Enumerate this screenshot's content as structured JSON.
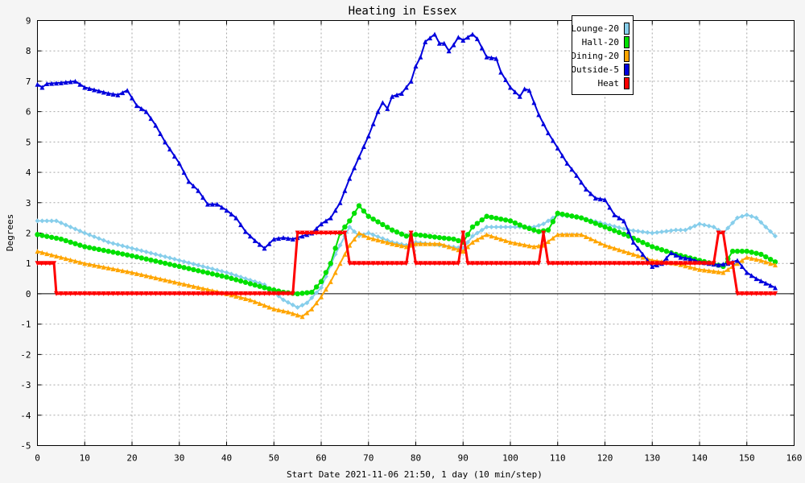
{
  "chart_data": {
    "type": "line",
    "title": "Heating in Essex",
    "xlabel": "Start Date 2021-11-06 21:50, 1 day (10 min/step)",
    "ylabel": "Degrees",
    "xlim": [
      0,
      160
    ],
    "ylim": [
      -5,
      9
    ],
    "x_ticks": [
      0,
      10,
      20,
      30,
      40,
      50,
      60,
      70,
      80,
      90,
      100,
      110,
      120,
      130,
      140,
      150,
      160
    ],
    "y_ticks": [
      -5,
      -4,
      -3,
      -2,
      -1,
      0,
      1,
      2,
      3,
      4,
      5,
      6,
      7,
      8,
      9
    ],
    "grid": true,
    "legend_position": "top-right",
    "series": [
      {
        "name": "Lounge-20",
        "color": "#87ceeb",
        "marker": "diamond",
        "points": [
          [
            0,
            2.4
          ],
          [
            4,
            2.4
          ],
          [
            10,
            2.0
          ],
          [
            15,
            1.7
          ],
          [
            20,
            1.5
          ],
          [
            30,
            1.1
          ],
          [
            40,
            0.7
          ],
          [
            48,
            0.3
          ],
          [
            52,
            -0.2
          ],
          [
            55,
            -0.45
          ],
          [
            57,
            -0.3
          ],
          [
            60,
            0.2
          ],
          [
            63,
            1.3
          ],
          [
            66,
            2.2
          ],
          [
            68,
            1.9
          ],
          [
            70,
            2.0
          ],
          [
            75,
            1.7
          ],
          [
            78,
            1.6
          ],
          [
            80,
            1.7
          ],
          [
            85,
            1.6
          ],
          [
            90,
            1.5
          ],
          [
            92,
            1.9
          ],
          [
            95,
            2.2
          ],
          [
            100,
            2.2
          ],
          [
            105,
            2.2
          ],
          [
            107,
            2.3
          ],
          [
            110,
            2.6
          ],
          [
            115,
            2.5
          ],
          [
            120,
            2.3
          ],
          [
            125,
            2.1
          ],
          [
            130,
            2.0
          ],
          [
            135,
            2.1
          ],
          [
            137,
            2.1
          ],
          [
            140,
            2.3
          ],
          [
            143,
            2.2
          ],
          [
            145,
            2.0
          ],
          [
            148,
            2.5
          ],
          [
            150,
            2.6
          ],
          [
            152,
            2.5
          ],
          [
            154,
            2.2
          ],
          [
            156,
            1.9
          ]
        ]
      },
      {
        "name": "Hall-20",
        "color": "#00e000",
        "marker": "circle",
        "points": [
          [
            0,
            1.95
          ],
          [
            5,
            1.8
          ],
          [
            10,
            1.55
          ],
          [
            20,
            1.25
          ],
          [
            30,
            0.9
          ],
          [
            40,
            0.55
          ],
          [
            48,
            0.2
          ],
          [
            52,
            0.05
          ],
          [
            55,
            0.0
          ],
          [
            58,
            0.05
          ],
          [
            60,
            0.4
          ],
          [
            62,
            1.0
          ],
          [
            64,
            2.0
          ],
          [
            66,
            2.4
          ],
          [
            68,
            2.9
          ],
          [
            70,
            2.55
          ],
          [
            75,
            2.1
          ],
          [
            78,
            1.9
          ],
          [
            80,
            1.95
          ],
          [
            85,
            1.85
          ],
          [
            88,
            1.8
          ],
          [
            90,
            1.7
          ],
          [
            92,
            2.2
          ],
          [
            95,
            2.55
          ],
          [
            100,
            2.4
          ],
          [
            103,
            2.2
          ],
          [
            106,
            2.05
          ],
          [
            108,
            2.1
          ],
          [
            110,
            2.65
          ],
          [
            115,
            2.5
          ],
          [
            120,
            2.2
          ],
          [
            125,
            1.9
          ],
          [
            130,
            1.55
          ],
          [
            135,
            1.3
          ],
          [
            140,
            1.1
          ],
          [
            145,
            0.9
          ],
          [
            147,
            1.4
          ],
          [
            150,
            1.4
          ],
          [
            153,
            1.3
          ],
          [
            156,
            1.05
          ]
        ]
      },
      {
        "name": "Dining-20",
        "color": "#ffa500",
        "marker": "triangle",
        "points": [
          [
            0,
            1.4
          ],
          [
            5,
            1.2
          ],
          [
            10,
            1.0
          ],
          [
            20,
            0.7
          ],
          [
            30,
            0.35
          ],
          [
            40,
            0.0
          ],
          [
            45,
            -0.2
          ],
          [
            50,
            -0.5
          ],
          [
            53,
            -0.6
          ],
          [
            56,
            -0.75
          ],
          [
            58,
            -0.5
          ],
          [
            60,
            -0.1
          ],
          [
            62,
            0.4
          ],
          [
            64,
            1.0
          ],
          [
            66,
            1.6
          ],
          [
            68,
            2.0
          ],
          [
            70,
            1.85
          ],
          [
            75,
            1.65
          ],
          [
            78,
            1.55
          ],
          [
            80,
            1.65
          ],
          [
            85,
            1.65
          ],
          [
            90,
            1.4
          ],
          [
            92,
            1.7
          ],
          [
            95,
            1.95
          ],
          [
            100,
            1.7
          ],
          [
            105,
            1.55
          ],
          [
            107,
            1.6
          ],
          [
            110,
            1.95
          ],
          [
            115,
            1.95
          ],
          [
            120,
            1.6
          ],
          [
            125,
            1.35
          ],
          [
            130,
            1.1
          ],
          [
            135,
            1.0
          ],
          [
            140,
            0.8
          ],
          [
            145,
            0.7
          ],
          [
            147,
            0.9
          ],
          [
            150,
            1.2
          ],
          [
            153,
            1.1
          ],
          [
            156,
            0.95
          ]
        ]
      },
      {
        "name": "Outside-5",
        "color": "#0000dd",
        "marker": "triangle",
        "points": [
          [
            0,
            6.9
          ],
          [
            1,
            6.8
          ],
          [
            2,
            6.92
          ],
          [
            5,
            6.95
          ],
          [
            8,
            7.0
          ],
          [
            10,
            6.8
          ],
          [
            15,
            6.6
          ],
          [
            17,
            6.55
          ],
          [
            19,
            6.7
          ],
          [
            21,
            6.2
          ],
          [
            23,
            6.0
          ],
          [
            25,
            5.55
          ],
          [
            27,
            5.0
          ],
          [
            30,
            4.3
          ],
          [
            32,
            3.7
          ],
          [
            34,
            3.4
          ],
          [
            36,
            2.95
          ],
          [
            38,
            2.95
          ],
          [
            40,
            2.75
          ],
          [
            42,
            2.5
          ],
          [
            44,
            2.05
          ],
          [
            46,
            1.75
          ],
          [
            48,
            1.5
          ],
          [
            50,
            1.8
          ],
          [
            52,
            1.85
          ],
          [
            54,
            1.8
          ],
          [
            56,
            1.9
          ],
          [
            58,
            2.0
          ],
          [
            60,
            2.3
          ],
          [
            62,
            2.5
          ],
          [
            64,
            3.0
          ],
          [
            66,
            3.8
          ],
          [
            68,
            4.5
          ],
          [
            70,
            5.2
          ],
          [
            72,
            6.0
          ],
          [
            73,
            6.3
          ],
          [
            74,
            6.1
          ],
          [
            75,
            6.5
          ],
          [
            77,
            6.6
          ],
          [
            79,
            7.0
          ],
          [
            80,
            7.5
          ],
          [
            81,
            7.8
          ],
          [
            82,
            8.3
          ],
          [
            84,
            8.55
          ],
          [
            85,
            8.25
          ],
          [
            86,
            8.25
          ],
          [
            87,
            8.0
          ],
          [
            88,
            8.2
          ],
          [
            89,
            8.45
          ],
          [
            90,
            8.35
          ],
          [
            92,
            8.55
          ],
          [
            93,
            8.4
          ],
          [
            95,
            7.8
          ],
          [
            97,
            7.75
          ],
          [
            98,
            7.3
          ],
          [
            100,
            6.8
          ],
          [
            102,
            6.5
          ],
          [
            103,
            6.75
          ],
          [
            104,
            6.7
          ],
          [
            106,
            5.9
          ],
          [
            108,
            5.3
          ],
          [
            110,
            4.8
          ],
          [
            112,
            4.3
          ],
          [
            114,
            3.9
          ],
          [
            116,
            3.45
          ],
          [
            118,
            3.15
          ],
          [
            120,
            3.1
          ],
          [
            122,
            2.6
          ],
          [
            124,
            2.4
          ],
          [
            126,
            1.7
          ],
          [
            128,
            1.3
          ],
          [
            130,
            0.9
          ],
          [
            132,
            1.0
          ],
          [
            134,
            1.35
          ],
          [
            136,
            1.2
          ],
          [
            138,
            1.15
          ],
          [
            140,
            1.05
          ],
          [
            142,
            1.0
          ],
          [
            144,
            0.95
          ],
          [
            146,
            1.0
          ],
          [
            148,
            1.1
          ],
          [
            150,
            0.7
          ],
          [
            152,
            0.5
          ],
          [
            154,
            0.35
          ],
          [
            156,
            0.2
          ]
        ]
      },
      {
        "name": "Heat",
        "color": "#ff0000",
        "marker": "triangle-down",
        "points": [
          [
            0,
            1
          ],
          [
            3.5,
            1
          ],
          [
            4,
            0
          ],
          [
            54,
            0
          ],
          [
            55,
            2
          ],
          [
            65,
            2
          ],
          [
            66,
            1
          ],
          [
            78,
            1
          ],
          [
            79,
            2
          ],
          [
            80,
            1
          ],
          [
            89,
            1
          ],
          [
            90,
            2
          ],
          [
            91,
            1
          ],
          [
            106,
            1
          ],
          [
            107,
            2
          ],
          [
            108,
            1
          ],
          [
            143,
            1
          ],
          [
            144,
            2
          ],
          [
            145,
            2
          ],
          [
            146,
            1
          ],
          [
            147,
            1
          ],
          [
            148,
            0
          ],
          [
            156,
            0
          ]
        ]
      }
    ]
  }
}
